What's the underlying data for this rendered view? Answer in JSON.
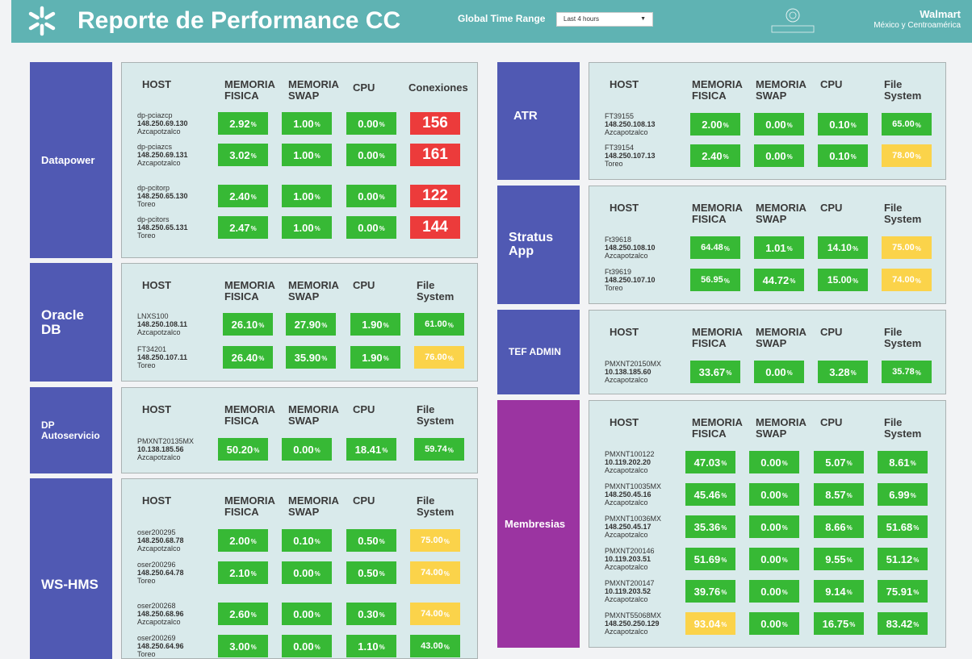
{
  "header": {
    "title": "Reporte de Performance CC",
    "time_range_label": "Global Time Range",
    "time_range_value": "Last 4 hours",
    "brand_name": "Walmart",
    "brand_sub": "México y Centroamérica",
    "logo_icon": "spark-icon",
    "partner_logo": "linkx-logo"
  },
  "colors": {
    "header": "#5fb3b3",
    "label_blue": "#5059b3",
    "label_purple": "#9b34a1",
    "panel": "#d9eaeb",
    "ok": "#37b935",
    "warn": "#fbd34a",
    "crit": "#ec3b3b"
  },
  "headers": {
    "host": "HOST",
    "mem_fisica": [
      "MEMORIA",
      "FISICA"
    ],
    "mem_swap": [
      "MEMORIA",
      "SWAP"
    ],
    "cpu": "CPU",
    "conexiones": "Conexiones",
    "fs": [
      "File",
      "System"
    ]
  },
  "unit": "%",
  "groups": {
    "datapower": {
      "label": "Datapower",
      "rows": [
        {
          "host": "dp-pciazcp",
          "ip": "148.250.69.130",
          "site": "Azcapotzalco",
          "mem": "2.92",
          "swap": "1.00",
          "cpu": "0.00",
          "last": "156"
        },
        {
          "host": "dp-pciazcs",
          "ip": "148.250.69.131",
          "site": "Azcapotzalco",
          "mem": "3.02",
          "swap": "1.00",
          "cpu": "0.00",
          "last": "161"
        },
        {
          "host": "dp-pcitorp",
          "ip": "148.250.65.130",
          "site": "Toreo",
          "mem": "2.40",
          "swap": "1.00",
          "cpu": "0.00",
          "last": "122"
        },
        {
          "host": "dp-pcitors",
          "ip": "148.250.65.131",
          "site": "Toreo",
          "mem": "2.47",
          "swap": "1.00",
          "cpu": "0.00",
          "last": "144"
        }
      ]
    },
    "oracle": {
      "label": [
        "Oracle",
        "DB"
      ],
      "rows": [
        {
          "host": "LNXS100",
          "ip": "148.250.108.11",
          "site": "Azcapotzalco",
          "mem": "26.10",
          "swap": "27.90",
          "cpu": "1.90",
          "last": "61.00"
        },
        {
          "host": "FT34201",
          "ip": "148.250.107.11",
          "site": "Toreo",
          "mem": "26.40",
          "swap": "35.90",
          "cpu": "1.90",
          "last": "76.00"
        }
      ]
    },
    "dpauto": {
      "label": [
        "DP",
        "Autoservicio"
      ],
      "rows": [
        {
          "host": "PMXNT20135MX",
          "ip": "10.138.185.56",
          "site": "Azcapotzalco",
          "mem": "50.20",
          "swap": "0.00",
          "cpu": "18.41",
          "last": "59.74"
        }
      ]
    },
    "wshms": {
      "label": "WS-HMS",
      "rows": [
        {
          "host": "oser200295",
          "ip": "148.250.68.78",
          "site": "Azcapotzalco",
          "mem": "2.00",
          "swap": "0.10",
          "cpu": "0.50",
          "last": "75.00"
        },
        {
          "host": "oser200296",
          "ip": "148.250.64.78",
          "site": "Toreo",
          "mem": "2.10",
          "swap": "0.00",
          "cpu": "0.50",
          "last": "74.00"
        },
        {
          "host": "oser200268",
          "ip": "148.250.68.96",
          "site": "Azcapotzalco",
          "mem": "2.60",
          "swap": "0.00",
          "cpu": "0.30",
          "last": "74.00"
        },
        {
          "host": "oser200269",
          "ip": "148.250.64.96",
          "site": "Toreo",
          "mem": "3.00",
          "swap": "0.00",
          "cpu": "1.10",
          "last": "43.00"
        }
      ]
    },
    "atr": {
      "label": "ATR",
      "rows": [
        {
          "host": "FT39155",
          "ip": "148.250.108.13",
          "site": "Azcapotzalco",
          "mem": "2.00",
          "swap": "0.00",
          "cpu": "0.10",
          "last": "65.00"
        },
        {
          "host": "FT39154",
          "ip": "148.250.107.13",
          "site": "Toreo",
          "mem": "2.40",
          "swap": "0.00",
          "cpu": "0.10",
          "last": "78.00"
        }
      ]
    },
    "stratus": {
      "label": [
        "Stratus",
        "App"
      ],
      "rows": [
        {
          "host": "Ft39618",
          "ip": "148.250.108.10",
          "site": "Azcapotzalco",
          "mem": "64.48",
          "swap": "1.01",
          "cpu": "14.10",
          "last": "75.00"
        },
        {
          "host": "Ft39619",
          "ip": "148.250.107.10",
          "site": "Toreo",
          "mem": "56.95",
          "swap": "44.72",
          "cpu": "15.00",
          "last": "74.00"
        }
      ]
    },
    "tef": {
      "label": "TEF ADMIN",
      "rows": [
        {
          "host": "PMXNT20150MX",
          "ip": "10.138.185.60",
          "site": "Azcapotzalco",
          "mem": "33.67",
          "swap": "0.00",
          "cpu": "3.28",
          "last": "35.78"
        }
      ]
    },
    "membresias": {
      "label": "Membresias",
      "rows": [
        {
          "host": "PMXNT100122",
          "ip": "10.119.202.20",
          "site": "Azcapotzalco",
          "mem": "47.03",
          "swap": "0.00",
          "cpu": "5.07",
          "last": "8.61"
        },
        {
          "host": "PMXNT10035MX",
          "ip": "148.250.45.16",
          "site": "Azcapotzalco",
          "mem": "45.46",
          "swap": "0.00",
          "cpu": "8.57",
          "last": "6.99"
        },
        {
          "host": "PMXNT10036MX",
          "ip": "148.250.45.17",
          "site": "Azcapotzalco",
          "mem": "35.36",
          "swap": "0.00",
          "cpu": "8.66",
          "last": "51.68"
        },
        {
          "host": "PMXNT200146",
          "ip": "10.119.203.51",
          "site": "Azcapotzalco",
          "mem": "51.69",
          "swap": "0.00",
          "cpu": "9.55",
          "last": "51.12"
        },
        {
          "host": "PMXNT200147",
          "ip": "10.119.203.52",
          "site": "Azcapotzalco",
          "mem": "39.76",
          "swap": "0.00",
          "cpu": "9.14",
          "last": "75.91"
        },
        {
          "host": "PMXNT55068MX",
          "ip": "148.250.250.129",
          "site": "Azcapotzalco",
          "mem": "93.04",
          "swap": "0.00",
          "cpu": "16.75",
          "last": "83.42"
        }
      ]
    }
  }
}
